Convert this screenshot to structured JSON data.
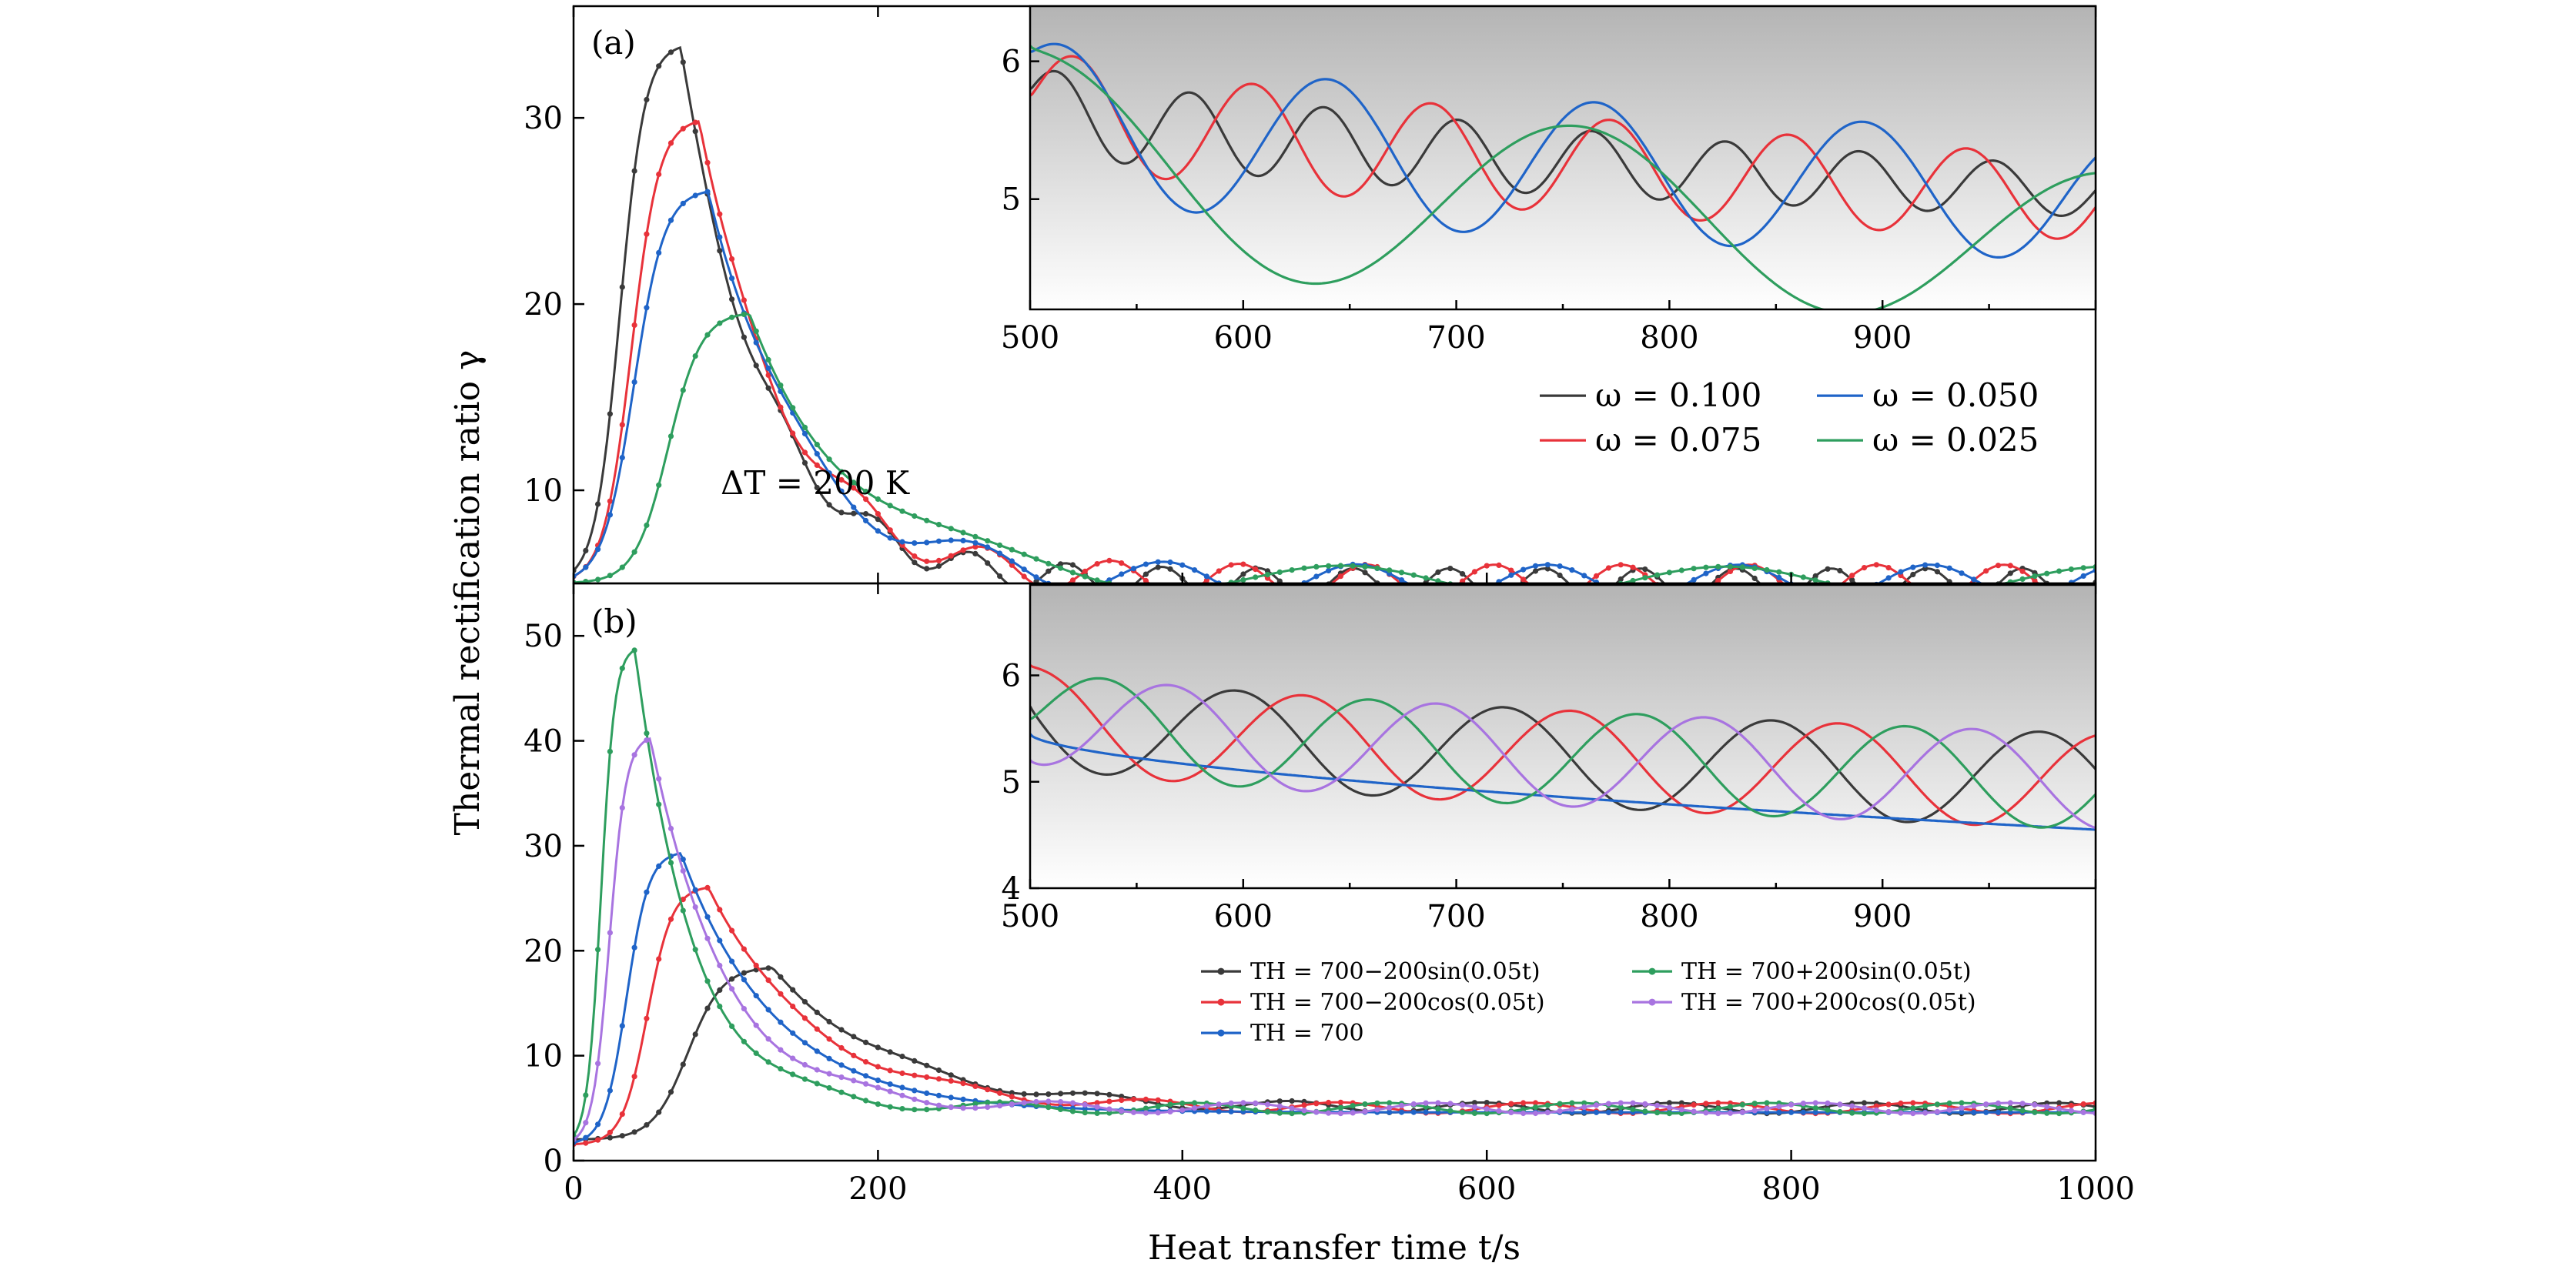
{
  "figure": {
    "ylabel": "Thermal rectification ratio γ",
    "xlabel": "Heat transfer time t/s",
    "colors": {
      "black": "#3a3a3a",
      "red": "#e8323a",
      "blue": "#1f64c8",
      "green": "#2e9e5e",
      "purple": "#a874e0"
    }
  },
  "chart_data": [
    {
      "id": "panel-a",
      "type": "line",
      "panel_label": "(a)",
      "annotation": "ΔT = 200 K",
      "xlim": [
        0,
        1000
      ],
      "ylim": [
        5,
        36
      ],
      "yticks": [
        10,
        20,
        30
      ],
      "xticks": [
        0,
        200,
        400,
        600,
        800,
        1000
      ],
      "show_x_tick_labels": false,
      "legend": {
        "placement": "right-middle",
        "columns": [
          [
            "ω = 0.100",
            "ω = 0.075"
          ],
          [
            "ω = 0.050",
            "ω = 0.025"
          ]
        ]
      },
      "series": [
        {
          "name": "ω = 0.100",
          "color_key": "black",
          "peak_t": 70,
          "peak": 34.0,
          "start": 5.0,
          "rise_w": 18,
          "decay": 55,
          "base": 5.0,
          "amp": 0.8,
          "omega": 0.1,
          "phase": 0.6
        },
        {
          "name": "ω = 0.075",
          "color_key": "red",
          "peak_t": 82,
          "peak": 30.0,
          "start": 5.0,
          "rise_w": 20,
          "decay": 58,
          "base": 5.1,
          "amp": 0.9,
          "omega": 0.075,
          "phase": 0.2
        },
        {
          "name": "ω = 0.050",
          "color_key": "blue",
          "peak_t": 88,
          "peak": 26.2,
          "start": 5.0,
          "rise_w": 22,
          "decay": 62,
          "base": 5.1,
          "amp": 0.9,
          "omega": 0.05,
          "phase": 1.0
        },
        {
          "name": "ω = 0.025",
          "color_key": "green",
          "peak_t": 115,
          "peak": 19.6,
          "start": 5.0,
          "rise_w": 24,
          "decay": 70,
          "base": 5.1,
          "amp": 0.8,
          "omega": 0.025,
          "phase": 1.5
        }
      ],
      "inset": {
        "xlim": [
          500,
          1000
        ],
        "ylim": [
          4.2,
          6.4
        ],
        "yticks": [
          5,
          6
        ],
        "xtick_labels": [
          "500",
          "600",
          "700",
          "800",
          "900"
        ],
        "series": [
          {
            "name": "ω = 0.100",
            "color_key": "black",
            "base_start": 5.7,
            "base_end": 5.05,
            "amp_start": 0.3,
            "amp_end": 0.18,
            "omega": 0.1,
            "phase": 0.6
          },
          {
            "name": "ω = 0.075",
            "color_key": "red",
            "base_start": 5.75,
            "base_end": 5.0,
            "amp_start": 0.4,
            "amp_end": 0.3,
            "omega": 0.075,
            "phase": 0.2
          },
          {
            "name": "ω = 0.050",
            "color_key": "blue",
            "base_start": 5.65,
            "base_end": 5.0,
            "amp_start": 0.55,
            "amp_end": 0.45,
            "omega": 0.05,
            "phase": 1.0
          },
          {
            "name": "ω = 0.025",
            "color_key": "green",
            "base_start": 5.4,
            "base_end": 4.65,
            "amp_start": 0.72,
            "amp_end": 0.55,
            "omega": 0.025,
            "phase": 1.5
          }
        ]
      }
    },
    {
      "id": "panel-b",
      "type": "line",
      "panel_label": "(b)",
      "xlim": [
        0,
        1000
      ],
      "ylim": [
        0,
        55
      ],
      "yticks": [
        0,
        10,
        20,
        30,
        40,
        50
      ],
      "xticks": [
        0,
        200,
        400,
        600,
        800,
        1000
      ],
      "xtick_labels": [
        "0",
        "200",
        "400",
        "600",
        "800",
        "1000"
      ],
      "legend": {
        "placement": "bottom-right",
        "columns": [
          [
            "TH = 700−200sin(0.05t)",
            "TH = 700−200cos(0.05t)",
            "TH = 700"
          ],
          [
            "TH = 700+200sin(0.05t)",
            "TH = 700+200cos(0.05t)"
          ]
        ]
      },
      "series": [
        {
          "name": "TH = 700−200sin(0.05t)",
          "color_key": "black",
          "peak_t": 130,
          "peak": 18.5,
          "start": 2.0,
          "rise_w": 25,
          "decay": 80,
          "base": 5.0,
          "amp": 0.5,
          "omega": 0.05,
          "phase": 3.14
        },
        {
          "name": "TH = 700−200cos(0.05t)",
          "color_key": "red",
          "peak_t": 88,
          "peak": 26.2,
          "start": 1.5,
          "rise_w": 18,
          "decay": 70,
          "base": 5.0,
          "amp": 0.5,
          "omega": 0.05,
          "phase": 1.57
        },
        {
          "name": "TH = 700",
          "color_key": "blue",
          "peak_t": 70,
          "peak": 29.5,
          "start": 1.5,
          "rise_w": 16,
          "decay": 62,
          "base": 4.6,
          "amp": 0.0,
          "omega": 0.05,
          "phase": 0
        },
        {
          "name": "TH = 700+200sin(0.05t)",
          "color_key": "green",
          "peak_t": 40,
          "peak": 49.0,
          "start": 1.5,
          "rise_w": 10,
          "decay": 38,
          "base": 5.0,
          "amp": 0.5,
          "omega": 0.05,
          "phase": 0
        },
        {
          "name": "TH = 700+200cos(0.05t)",
          "color_key": "purple",
          "peak_t": 50,
          "peak": 40.5,
          "start": 1.5,
          "rise_w": 12,
          "decay": 48,
          "base": 5.0,
          "amp": 0.5,
          "omega": 0.05,
          "phase": -1.57
        }
      ],
      "inset": {
        "xlim": [
          500,
          1000
        ],
        "ylim": [
          4,
          6.85
        ],
        "yticks": [
          4,
          5,
          6
        ],
        "xtick_labels": [
          "500",
          "600",
          "700",
          "800",
          "900"
        ],
        "series": [
          {
            "name": "TH = 700−200sin(0.05t)",
            "color_key": "black",
            "base_start": 5.65,
            "base_end": 5.0,
            "amp_start": 0.45,
            "amp_end": 0.45,
            "omega": 0.05,
            "phase": 3.14,
            "pshift": 0.0
          },
          {
            "name": "TH = 700−200cos(0.05t)",
            "color_key": "red",
            "base_start": 5.65,
            "base_end": 5.0,
            "amp_start": 0.45,
            "amp_end": 0.45,
            "omega": 0.05,
            "phase": 1.57,
            "pshift": 0.0
          },
          {
            "name": "TH = 700",
            "color_key": "blue",
            "base_start": 5.45,
            "base_end": 4.55,
            "amp_start": 0.0,
            "amp_end": 0.0,
            "omega": 0.05,
            "phase": 0,
            "pshift": 0.0
          },
          {
            "name": "TH = 700+200sin(0.05t)",
            "color_key": "green",
            "base_start": 5.65,
            "base_end": 5.0,
            "amp_start": 0.45,
            "amp_end": 0.45,
            "omega": 0.05,
            "phase": 0,
            "pshift": 0.0
          },
          {
            "name": "TH = 700+200cos(0.05t)",
            "color_key": "purple",
            "base_start": 5.65,
            "base_end": 5.0,
            "amp_start": 0.45,
            "amp_end": 0.45,
            "omega": 0.05,
            "phase": -1.57,
            "pshift": 0.0
          }
        ]
      }
    }
  ]
}
